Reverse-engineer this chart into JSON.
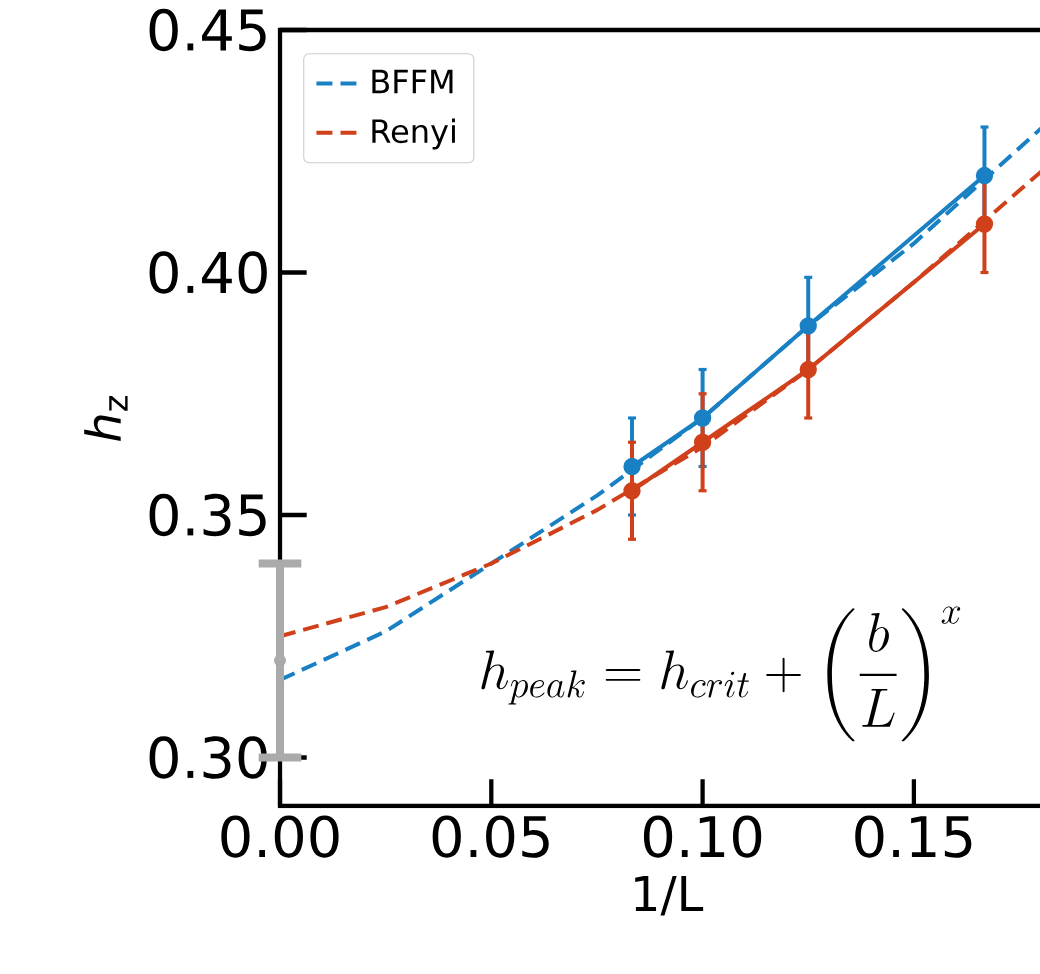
{
  "chart_data": {
    "type": "line",
    "xlabel": "1/L",
    "ylabel": "*h*$_{z}$",
    "xlim": [
      0,
      0.183
    ],
    "ylim": [
      0.29,
      0.45
    ],
    "xticks": [
      {
        "value": 0,
        "label": "0.00"
      },
      {
        "value": 0.05,
        "label": "0.05"
      },
      {
        "value": 0.1,
        "label": "0.10"
      },
      {
        "value": 0.15,
        "label": "0.15"
      }
    ],
    "yticks": [
      {
        "value": 0.3,
        "label": "0.30"
      },
      {
        "value": 0.35,
        "label": "0.35"
      },
      {
        "value": 0.4,
        "label": "0.40"
      },
      {
        "value": 0.45,
        "label": "0.45"
      }
    ],
    "grid": false,
    "legend": "top left",
    "annotations": [
      "h_{peak} = h_{crit} + \\left(\\frac{b}{L}\\right)^x"
    ],
    "series": [
      {
        "name": "BFFM",
        "color": "#1a80c4",
        "line_style": "dashed",
        "marker": "none",
        "x": [
          0,
          0.025,
          0.05,
          0.075,
          0.1,
          0.125,
          0.15,
          0.183
        ],
        "values": [
          0.316,
          0.326,
          0.34,
          0.354,
          0.37,
          0.389,
          0.406,
          0.432
        ]
      },
      {
        "name": "Renyi",
        "color": "#d0401a",
        "line_style": "dashed",
        "marker": "none",
        "x": [
          0,
          0.025,
          0.05,
          0.075,
          0.1,
          0.125,
          0.15,
          0.183
        ],
        "values": [
          0.325,
          0.331,
          0.34,
          0.351,
          0.364,
          0.38,
          0.398,
          0.423
        ]
      },
      {
        "color": "#1a80c4",
        "line_style": "solid",
        "marker": "circle",
        "x": [
          0.0833,
          0.1,
          0.125,
          0.1667
        ],
        "values": [
          0.36,
          0.37,
          0.389,
          0.42
        ],
        "errors": [
          0.01,
          0.01,
          0.01,
          0.01
        ]
      },
      {
        "color": "#d0401a",
        "line_style": "solid",
        "marker": "circle",
        "x": [
          0.0833,
          0.1,
          0.125,
          0.1667
        ],
        "values": [
          0.355,
          0.365,
          0.38,
          0.41
        ],
        "errors": [
          0.01,
          0.01,
          0.01,
          0.01
        ]
      },
      {
        "type": "scatter",
        "color": "#aaaaaa",
        "marker": "circle",
        "x": [
          0
        ],
        "values": [
          0.32
        ],
        "errors": [
          0.02
        ]
      }
    ]
  }
}
